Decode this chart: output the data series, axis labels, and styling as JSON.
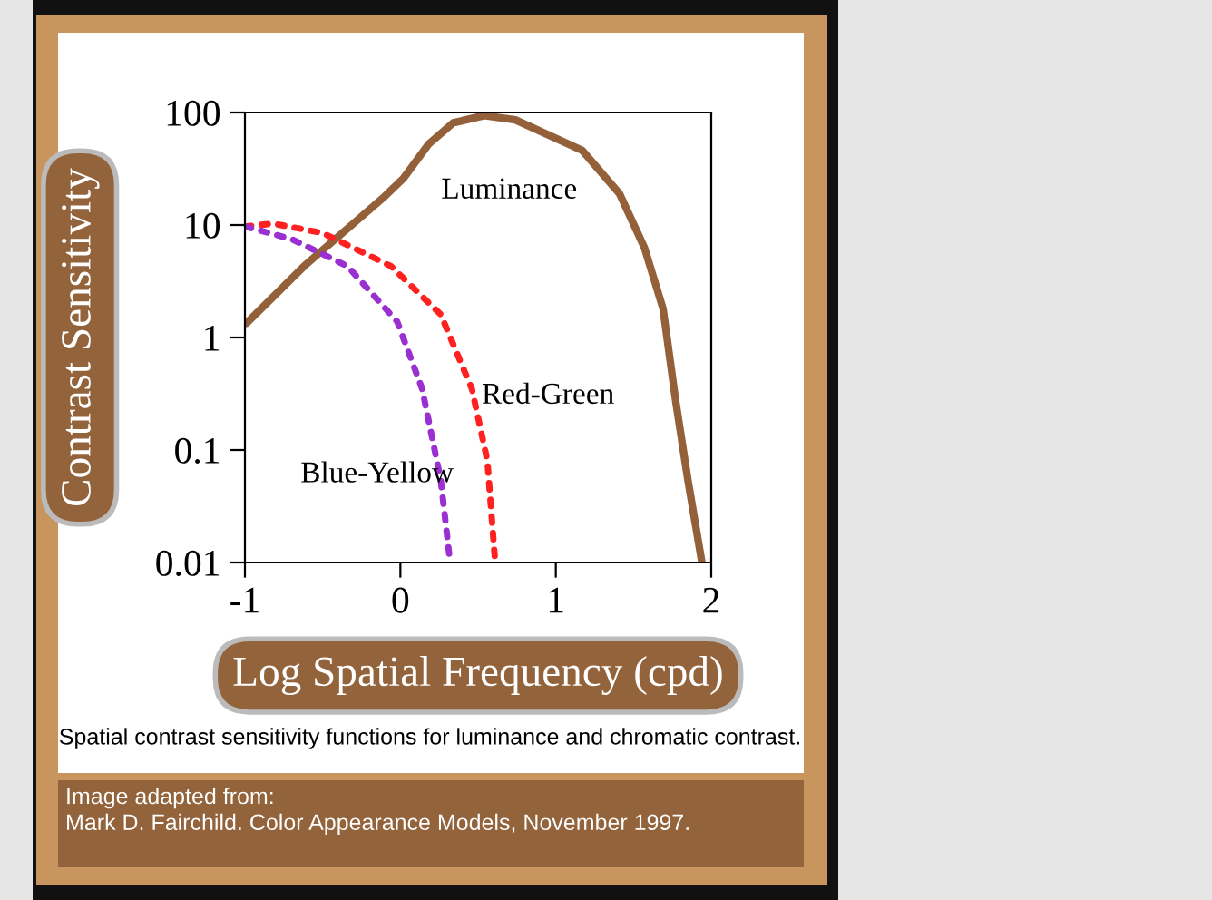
{
  "chart_data": {
    "type": "line",
    "xlabel": "Log Spatial Frequency (cpd)",
    "ylabel": "Contrast Sensitivity",
    "log": "y",
    "xlim": [
      -1,
      2
    ],
    "xticks": [
      -1,
      0,
      1,
      2
    ],
    "ylim": [
      0.01,
      100
    ],
    "yticks": [
      0.01,
      0.1,
      1,
      10,
      100
    ],
    "grid": false,
    "legend": false,
    "marker": "none",
    "series": [
      {
        "name": "Luminance",
        "color": "#94603a",
        "line_style": "solid",
        "x": [
          -0.99,
          -0.62,
          -0.1,
          0.02,
          0.18,
          0.34,
          0.54,
          0.74,
          1.17,
          1.41,
          1.57,
          1.69,
          1.77,
          1.85,
          1.94
        ],
        "values": [
          1.34,
          4.3,
          18,
          26,
          52,
          81,
          94,
          86,
          46,
          19,
          6.3,
          1.8,
          0.28,
          0.054,
          0.01
        ]
      },
      {
        "name": "Red-Green",
        "color": "#ff2020",
        "line_style": "dotted",
        "x": [
          -1,
          -0.82,
          -0.5,
          -0.06,
          0.26,
          0.46,
          0.56,
          0.61
        ],
        "values": [
          9.7,
          10.3,
          8.5,
          4.3,
          1.6,
          0.35,
          0.08,
          0.01
        ]
      },
      {
        "name": "Blue-Yellow",
        "color": "#9b30d0",
        "line_style": "dotted",
        "x": [
          -1,
          -0.7,
          -0.34,
          -0.02,
          0.14,
          0.26,
          0.32
        ],
        "values": [
          9.7,
          7.5,
          4.3,
          1.38,
          0.35,
          0.054,
          0.01
        ]
      }
    ],
    "annotations": [
      "Spatial contrast sensitivity functions for luminance and chromatic contrast.",
      "Image adapted from:\nMark D. Fairchild. Color Appearance Models, November 1997."
    ]
  }
}
